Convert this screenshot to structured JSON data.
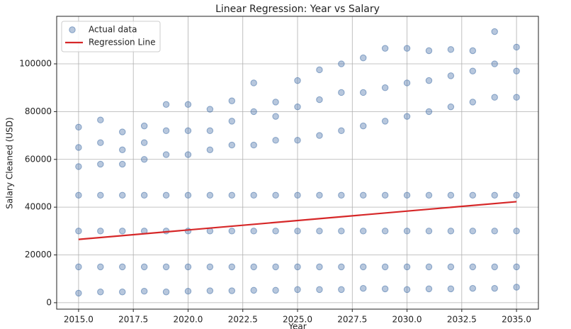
{
  "chart_data": {
    "type": "scatter",
    "title": "Linear Regression: Year vs Salary",
    "x_label": "Year",
    "y_label": "Salary Cleaned (USD)",
    "xlim": [
      2014,
      2036
    ],
    "ylim": [
      -2700,
      119900
    ],
    "xticks": [
      {
        "value": 2015,
        "label": "2015.0"
      },
      {
        "value": 2017.5,
        "label": "2017.5"
      },
      {
        "value": 2020,
        "label": "2020.0"
      },
      {
        "value": 2022.5,
        "label": "2022.5"
      },
      {
        "value": 2025,
        "label": "2025.0"
      },
      {
        "value": 2027.5,
        "label": "2027.5"
      },
      {
        "value": 2030,
        "label": "2030.0"
      },
      {
        "value": 2032.5,
        "label": "2032.5"
      },
      {
        "value": 2035,
        "label": "2035.0"
      }
    ],
    "yticks": [
      0,
      20000,
      40000,
      60000,
      80000,
      100000
    ],
    "grid": true,
    "legend": "upper left",
    "series": [
      {
        "name": "Actual data",
        "type": "scatter",
        "color": "#4a74aa",
        "x": [
          2015,
          2015,
          2015,
          2015,
          2015,
          2015,
          2015,
          2016,
          2016,
          2016,
          2016,
          2016,
          2016,
          2016,
          2017,
          2017,
          2017,
          2017,
          2017,
          2017,
          2017,
          2018,
          2018,
          2018,
          2018,
          2018,
          2018,
          2018,
          2019,
          2019,
          2019,
          2019,
          2019,
          2019,
          2019,
          2020,
          2020,
          2020,
          2020,
          2020,
          2020,
          2020,
          2021,
          2021,
          2021,
          2021,
          2021,
          2021,
          2021,
          2022,
          2022,
          2022,
          2022,
          2022,
          2022,
          2022,
          2023,
          2023,
          2023,
          2023,
          2023,
          2023,
          2023,
          2024,
          2024,
          2024,
          2024,
          2024,
          2024,
          2024,
          2025,
          2025,
          2025,
          2025,
          2025,
          2025,
          2025,
          2026,
          2026,
          2026,
          2026,
          2026,
          2026,
          2026,
          2027,
          2027,
          2027,
          2027,
          2027,
          2027,
          2027,
          2028,
          2028,
          2028,
          2028,
          2028,
          2028,
          2028,
          2029,
          2029,
          2029,
          2029,
          2029,
          2029,
          2029,
          2030,
          2030,
          2030,
          2030,
          2030,
          2030,
          2030,
          2031,
          2031,
          2031,
          2031,
          2031,
          2031,
          2031,
          2032,
          2032,
          2032,
          2032,
          2032,
          2032,
          2032,
          2033,
          2033,
          2033,
          2033,
          2033,
          2033,
          2033,
          2034,
          2034,
          2034,
          2034,
          2034,
          2034,
          2034,
          2035,
          2035,
          2035,
          2035,
          2035,
          2035,
          2035
        ],
        "values": [
          4000,
          15000,
          30000,
          45000,
          57000,
          65000,
          73500,
          4500,
          15000,
          30000,
          45000,
          58000,
          67000,
          76500,
          4500,
          15000,
          30000,
          45000,
          58000,
          64000,
          71500,
          4800,
          15000,
          30000,
          45000,
          60000,
          67000,
          74000,
          4500,
          15000,
          30000,
          45000,
          62000,
          72000,
          83000,
          4800,
          15000,
          30000,
          45000,
          62000,
          72000,
          83000,
          5000,
          15000,
          30000,
          45000,
          64000,
          72000,
          81000,
          5000,
          15000,
          30000,
          45000,
          66000,
          76000,
          84500,
          5200,
          15000,
          30000,
          45000,
          66000,
          80000,
          92000,
          5200,
          15000,
          30000,
          45000,
          68000,
          78000,
          84000,
          5500,
          15000,
          30000,
          45000,
          68000,
          82000,
          93000,
          5500,
          15000,
          30000,
          45000,
          70000,
          85000,
          97500,
          5500,
          15000,
          30000,
          45000,
          72000,
          88000,
          100000,
          6000,
          15000,
          30000,
          45000,
          74000,
          88000,
          102500,
          5800,
          15000,
          30000,
          45000,
          76000,
          90000,
          106500,
          5500,
          15000,
          30000,
          45000,
          78000,
          92000,
          106500,
          5800,
          15000,
          30000,
          45000,
          80000,
          93000,
          105500,
          5800,
          15000,
          30000,
          45000,
          82000,
          95000,
          106000,
          6000,
          15000,
          30000,
          45000,
          84000,
          97000,
          105500,
          6000,
          15000,
          30000,
          45000,
          86000,
          100000,
          113500,
          6500,
          15000,
          30000,
          45000,
          86000,
          97000,
          107000
        ]
      },
      {
        "name": "Regression Line",
        "type": "line",
        "color": "#d62728",
        "x": [
          2015,
          2035
        ],
        "values": [
          26500,
          42300
        ]
      }
    ]
  }
}
